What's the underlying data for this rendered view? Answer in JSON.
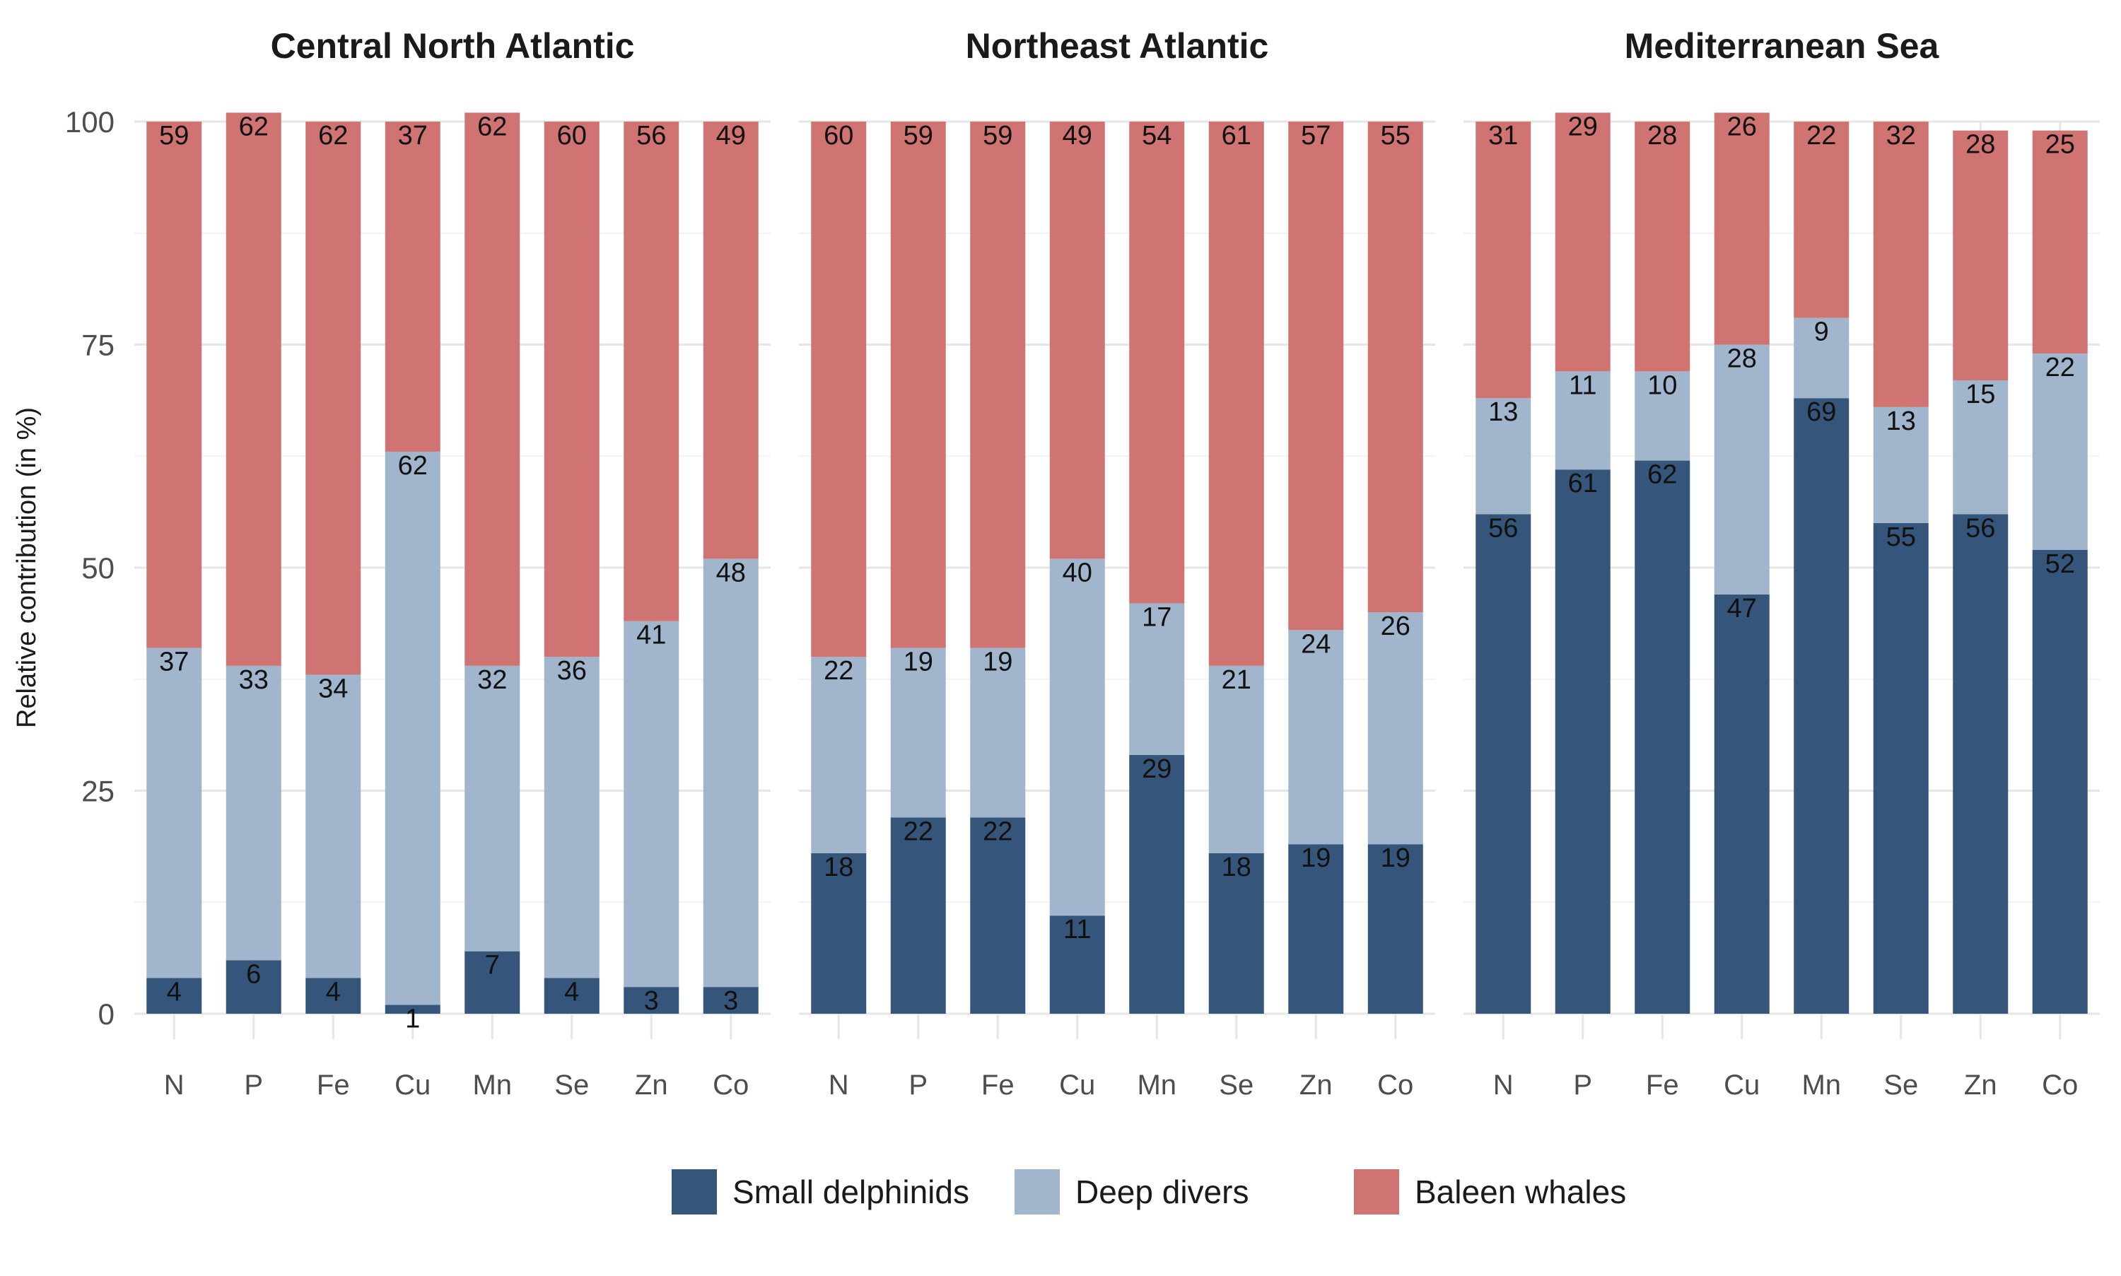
{
  "chart_data": {
    "type": "bar",
    "stacked": true,
    "ylabel": "Relative contribution (in %)",
    "xlabel": "",
    "ylim": [
      0,
      100
    ],
    "yticks": [
      0,
      25,
      50,
      75,
      100
    ],
    "grid": true,
    "legend_position": "bottom",
    "categories": [
      "N",
      "P",
      "Fe",
      "Cu",
      "Mn",
      "Se",
      "Zn",
      "Co"
    ],
    "legend": [
      {
        "name": "Small delphinids",
        "color": "#36557a"
      },
      {
        "name": "Deep divers",
        "color": "#a1b6cc"
      },
      {
        "name": "Baleen whales",
        "color": "#cf7473"
      }
    ],
    "facets": [
      {
        "title": "Central North Atlantic",
        "series": [
          {
            "name": "Small delphinids",
            "values": [
              4,
              6,
              4,
              1,
              7,
              4,
              3,
              3
            ]
          },
          {
            "name": "Deep divers",
            "values": [
              37,
              33,
              34,
              62,
              32,
              36,
              41,
              48
            ]
          },
          {
            "name": "Baleen whales",
            "values": [
              59,
              62,
              62,
              37,
              62,
              60,
              56,
              49
            ]
          }
        ]
      },
      {
        "title": "Northeast Atlantic",
        "series": [
          {
            "name": "Small delphinids",
            "values": [
              18,
              22,
              22,
              11,
              29,
              18,
              19,
              19
            ]
          },
          {
            "name": "Deep divers",
            "values": [
              22,
              19,
              19,
              40,
              17,
              21,
              24,
              26
            ]
          },
          {
            "name": "Baleen whales",
            "values": [
              60,
              59,
              59,
              49,
              54,
              61,
              57,
              55
            ]
          }
        ]
      },
      {
        "title": "Mediterranean Sea",
        "series": [
          {
            "name": "Small delphinids",
            "values": [
              56,
              61,
              62,
              47,
              69,
              55,
              56,
              52
            ]
          },
          {
            "name": "Deep divers",
            "values": [
              13,
              11,
              10,
              28,
              9,
              13,
              15,
              22
            ]
          },
          {
            "name": "Baleen whales",
            "values": [
              31,
              29,
              28,
              26,
              22,
              32,
              28,
              25
            ]
          }
        ]
      }
    ]
  }
}
